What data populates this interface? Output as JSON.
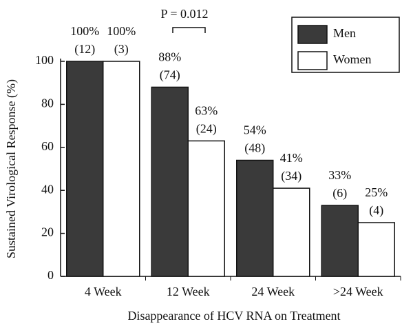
{
  "chart_data": {
    "type": "bar",
    "title": null,
    "annotation": "P = 0.012",
    "x_label": "Disappearance of HCV RNA on Treatment",
    "y_label": "Sustained Virological Response (%)",
    "categories": [
      "4 Week",
      "12 Week",
      "24 Week",
      ">24 Week"
    ],
    "series": [
      {
        "name": "Men",
        "color": "#3a3a3a",
        "values": [
          100,
          88,
          54,
          33
        ],
        "value_labels": [
          "100%",
          "88%",
          "54%",
          "33%"
        ],
        "counts": [
          "(12)",
          "(74)",
          "(48)",
          "(6)"
        ]
      },
      {
        "name": "Women",
        "color": "#ffffff",
        "values": [
          100,
          63,
          41,
          25
        ],
        "value_labels": [
          "100%",
          "63%",
          "41%",
          "25%"
        ],
        "counts": [
          "(3)",
          "(24)",
          "(34)",
          "(4)"
        ]
      }
    ],
    "ylim": [
      0,
      100
    ],
    "yticks": [
      0,
      20,
      40,
      60,
      80,
      100
    ],
    "legend": "top-right"
  }
}
